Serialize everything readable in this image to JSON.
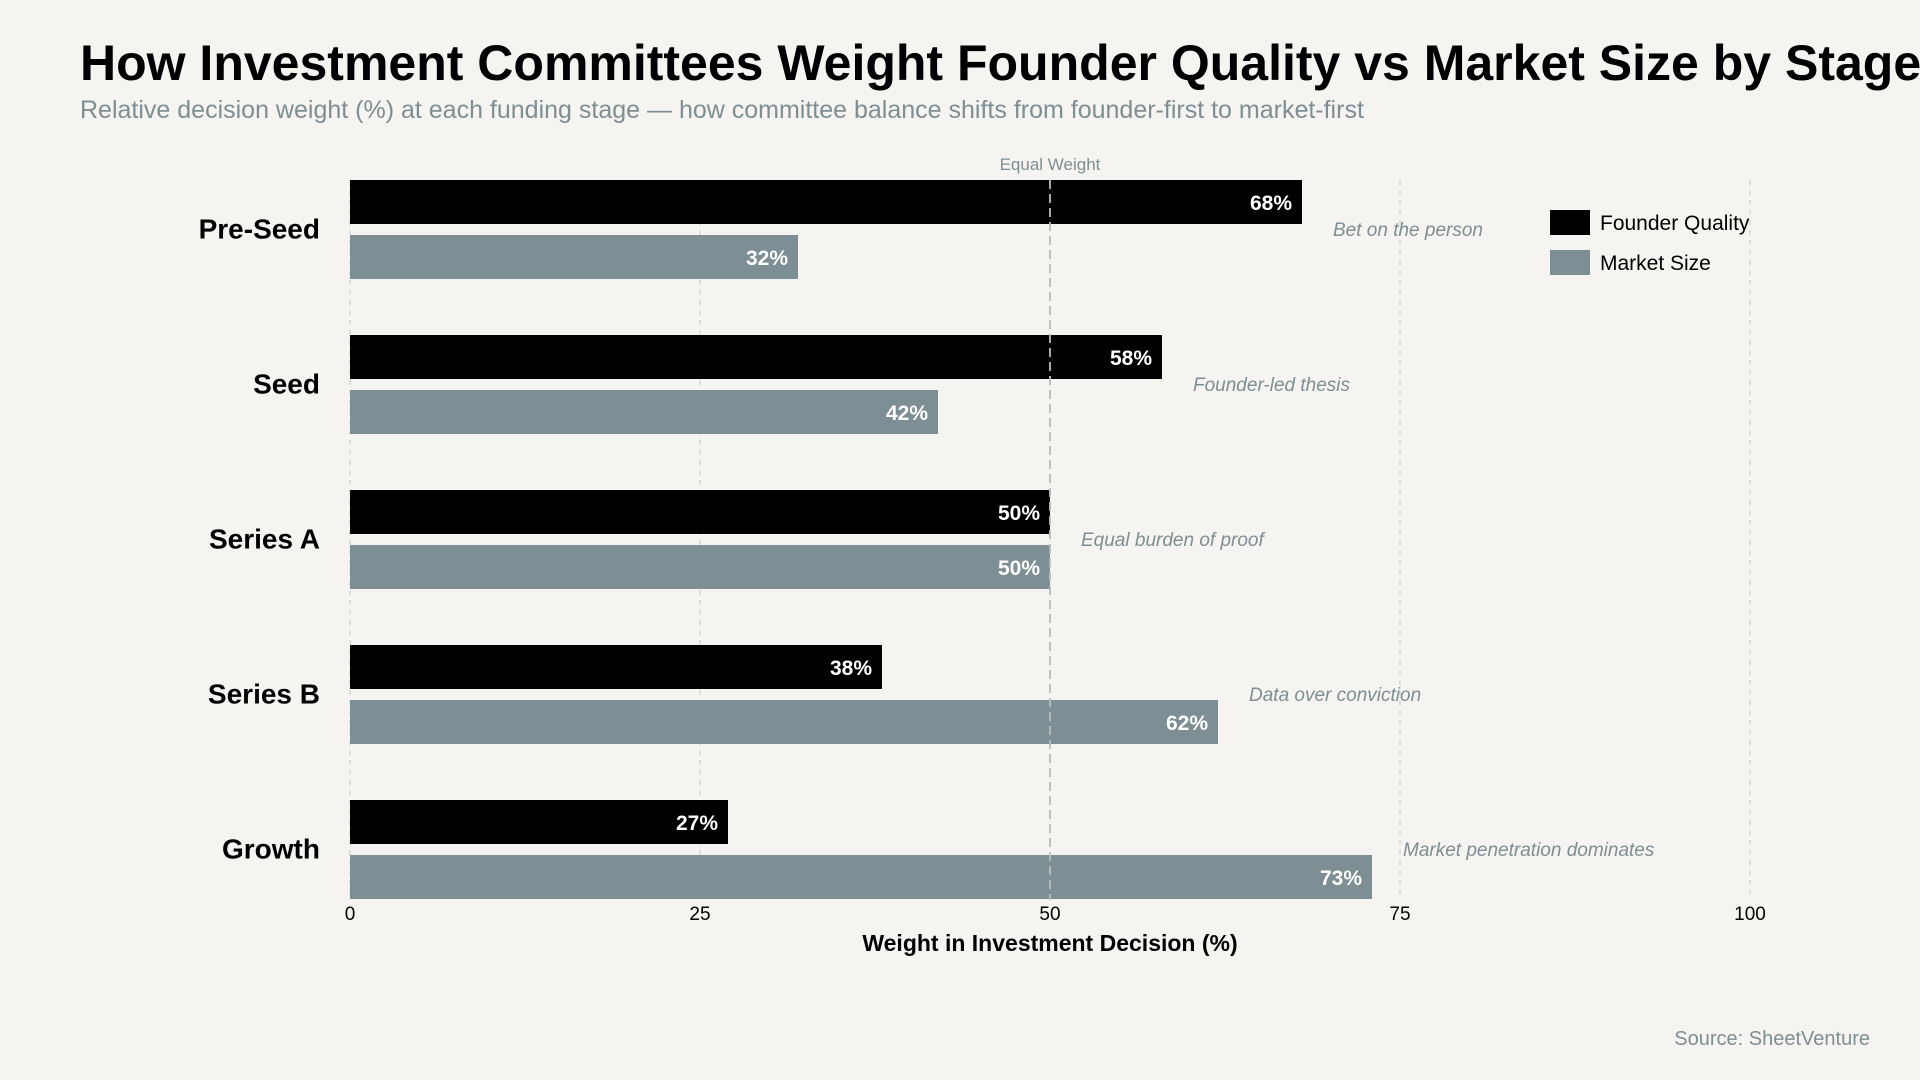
{
  "title": "How Investment Committees Weight Founder Quality vs Market Size by Stage",
  "subtitle": "Relative decision weight (%) at each funding stage — how committee balance shifts from founder-first to market-first",
  "source": "Source: SheetVenture",
  "chart_data": {
    "type": "bar",
    "orientation": "horizontal",
    "categories": [
      "Pre-Seed",
      "Seed",
      "Series A",
      "Series B",
      "Growth"
    ],
    "series": [
      {
        "name": "Founder Quality",
        "values": [
          68,
          58,
          50,
          38,
          27
        ],
        "color": "#000000"
      },
      {
        "name": "Market Size",
        "values": [
          32,
          42,
          50,
          62,
          73
        ],
        "color": "#7d8e94"
      }
    ],
    "annotations": [
      "Bet on the person",
      "Founder-led thesis",
      "Equal burden of proof",
      "Data over conviction",
      "Market penetration dominates"
    ],
    "value_suffix": "%",
    "xlabel": "Weight in Investment Decision (%)",
    "ylabel": "",
    "xlim": [
      0,
      100
    ],
    "xticks": [
      0,
      25,
      50,
      75,
      100
    ],
    "reference_line": {
      "value": 50,
      "label": "Equal Weight"
    },
    "grid": true,
    "legend_position": "top-right"
  }
}
